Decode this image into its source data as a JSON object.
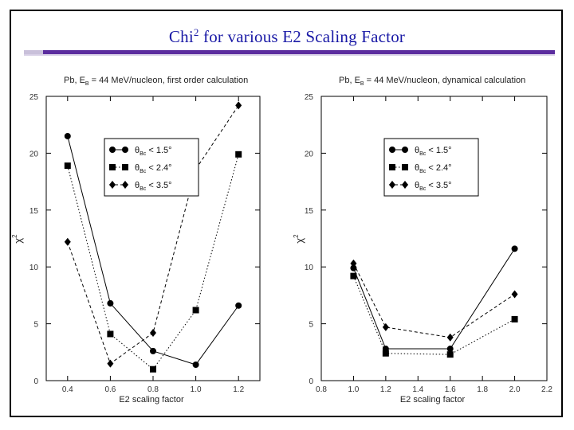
{
  "slide": {
    "title_main": "Chi",
    "title_sup": "2",
    "title_rest": " for various E2 Scaling Factor"
  },
  "chart_data": [
    {
      "type": "line",
      "annotation": "Pb,  E  = 44 MeV/nucleon,  first order calculation",
      "annotation_sub": "B",
      "xlabel": "E2 scaling factor",
      "ylabel": "χ",
      "ylabel_sup": "2",
      "xlim": [
        0.3,
        1.3
      ],
      "ylim": [
        0,
        25
      ],
      "xticks": [
        "0.4",
        "0.6",
        "0.8",
        "1.0",
        "1.2"
      ],
      "yticks": [
        "0",
        "5",
        "10",
        "15",
        "20",
        "25"
      ],
      "legend_position": "upper-left",
      "series": [
        {
          "name": "θ",
          "name_sub": "Bc",
          "name_rest": " < 1.5°",
          "marker": "circle",
          "dash": "",
          "x": [
            0.4,
            0.6,
            0.8,
            1.0,
            1.2
          ],
          "y": [
            21.5,
            6.8,
            2.6,
            1.4,
            6.6
          ]
        },
        {
          "name": "θ",
          "name_sub": "Bc",
          "name_rest": " < 2.4°",
          "marker": "square",
          "dash": "1.5,2.5",
          "x": [
            0.4,
            0.6,
            0.8,
            1.0,
            1.2
          ],
          "y": [
            18.9,
            4.1,
            1.0,
            6.2,
            19.9
          ]
        },
        {
          "name": "θ",
          "name_sub": "Bc",
          "name_rest": " < 3.5°",
          "marker": "diamond",
          "dash": "4,3",
          "x": [
            0.4,
            0.6,
            0.8,
            1.0,
            1.2
          ],
          "y": [
            12.2,
            1.5,
            4.2,
            18.6,
            24.2
          ]
        }
      ]
    },
    {
      "type": "line",
      "annotation": "Pb,  E  = 44 MeV/nucleon,  dynamical calculation",
      "annotation_sub": "B",
      "xlabel": "E2 scaling factor",
      "ylabel": "χ",
      "ylabel_sup": "2",
      "xlim": [
        0.8,
        2.2
      ],
      "ylim": [
        0,
        25
      ],
      "xticks": [
        "0.8",
        "1.0",
        "1.2",
        "1.4",
        "1.6",
        "1.8",
        "2.0",
        "2.2"
      ],
      "yticks": [
        "0",
        "5",
        "10",
        "15",
        "20",
        "25"
      ],
      "legend_position": "upper-left",
      "series": [
        {
          "name": "θ",
          "name_sub": "Bc",
          "name_rest": " < 1.5°",
          "marker": "circle",
          "dash": "",
          "x": [
            1.0,
            1.2,
            1.6,
            2.0
          ],
          "y": [
            9.9,
            2.8,
            2.8,
            11.6
          ]
        },
        {
          "name": "θ",
          "name_sub": "Bc",
          "name_rest": " < 2.4°",
          "marker": "square",
          "dash": "1.5,2.5",
          "x": [
            1.0,
            1.2,
            1.6,
            2.0
          ],
          "y": [
            9.2,
            2.4,
            2.3,
            5.4
          ]
        },
        {
          "name": "θ",
          "name_sub": "Bc",
          "name_rest": " < 3.5°",
          "marker": "diamond",
          "dash": "4,3",
          "x": [
            1.0,
            1.2,
            1.6,
            2.0
          ],
          "y": [
            10.3,
            4.7,
            3.8,
            7.6
          ]
        }
      ]
    }
  ]
}
